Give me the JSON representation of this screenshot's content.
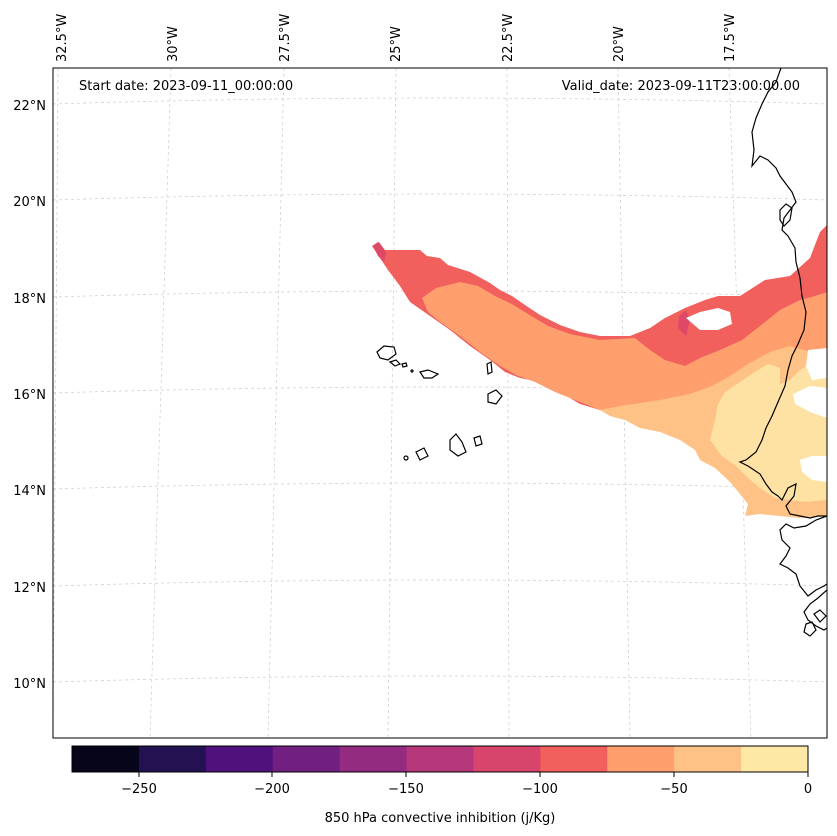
{
  "map": {
    "start_label": "Start date: 2023-09-11_00:00:00",
    "valid_label": "Valid_date: 2023-09-11T23:00:00.00",
    "lon_ticks": [
      "32.5°W",
      "30°W",
      "27.5°W",
      "25°W",
      "22.5°W",
      "20°W",
      "17.5°W"
    ],
    "lat_ticks": [
      "22°N",
      "20°N",
      "18°N",
      "16°N",
      "14°N",
      "12°N",
      "10°N"
    ],
    "colors": {
      "c100": "#f1605d",
      "c125": "#de4968",
      "c75": "#fe9f6d",
      "c50": "#fec287",
      "c25": "#fde2a3",
      "coast": "#000000"
    }
  },
  "colorbar": {
    "label": "850 hPa convective inhibition (j/Kg)",
    "ticks": [
      "−250",
      "−200",
      "−150",
      "−100",
      "−50",
      "0"
    ],
    "colors": [
      "#000004",
      "#1d1147",
      "#51127c",
      "#822681",
      "#b73779",
      "#e75263",
      "#fc8961",
      "#feb078",
      "#fecf92",
      "#fcfdbf",
      "#fde2a3"
    ]
  },
  "colorbar_bins": [
    "#06051a",
    "#231151",
    "#4f117b",
    "#711f81",
    "#932b80",
    "#b6377a",
    "#d8456c",
    "#f1605d",
    "#fe9f6d",
    "#fec287",
    "#fde9a5"
  ]
}
